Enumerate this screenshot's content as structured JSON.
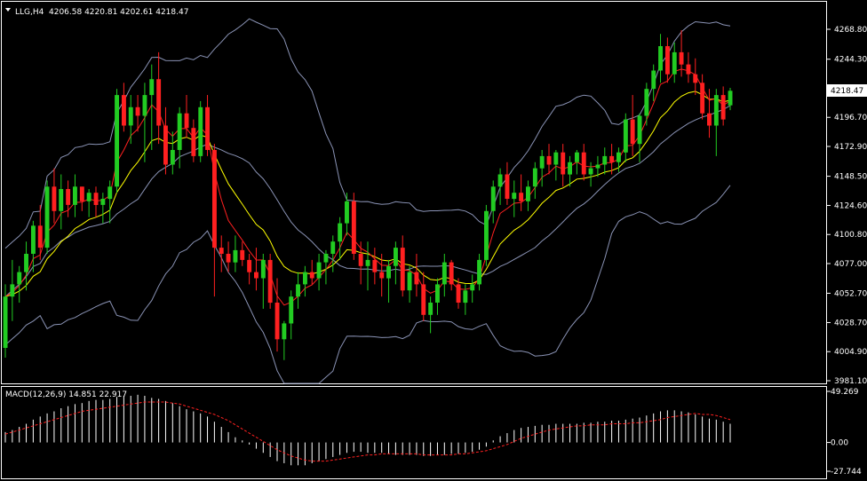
{
  "main": {
    "symbol_label": "LLG,H4",
    "ohlc_text": "4206.58 4220.81 4202.61 4218.47",
    "current_price_label": "4218.47",
    "price_axis": [
      "4268.80",
      "4244.30",
      "4220.30",
      "4196.70",
      "4172.90",
      "4148.50",
      "4124.60",
      "4100.80",
      "4077.00",
      "4052.70",
      "4028.70",
      "4004.90",
      "3981.10"
    ]
  },
  "macd": {
    "label": "MACD(12,26,9) 14.851 22.917",
    "axis": [
      "49.269",
      "0.00",
      "-27.744"
    ]
  },
  "colors": {
    "background": "#000000",
    "frame": "#ffffff",
    "bull_candle": "#22cc22",
    "bear_candle": "#ff2020",
    "wick": "#22cc22",
    "bollinger": "#8a93b5",
    "ma_fast": "#ff2020",
    "ma_slow": "#ffff00",
    "macd_hist": "#ffffff",
    "macd_signal": "#ff2020"
  },
  "chart_data": {
    "type": "candlestick",
    "price_range": [
      3981.1,
      4280.0
    ],
    "candles": [
      [
        4008,
        4060,
        4000,
        4050
      ],
      [
        4050,
        4080,
        4030,
        4060
      ],
      [
        4060,
        4075,
        4045,
        4070
      ],
      [
        4070,
        4095,
        4055,
        4085
      ],
      [
        4085,
        4112,
        4070,
        4108
      ],
      [
        4108,
        4125,
        4080,
        4090
      ],
      [
        4090,
        4145,
        4085,
        4140
      ],
      [
        4140,
        4155,
        4110,
        4120
      ],
      [
        4120,
        4150,
        4105,
        4138
      ],
      [
        4138,
        4145,
        4115,
        4125
      ],
      [
        4125,
        4150,
        4115,
        4140
      ],
      [
        4140,
        4140,
        4120,
        4128
      ],
      [
        4128,
        4138,
        4115,
        4135
      ],
      [
        4135,
        4140,
        4115,
        4125
      ],
      [
        4125,
        4135,
        4110,
        4130
      ],
      [
        4130,
        4145,
        4110,
        4140
      ],
      [
        4140,
        4220,
        4135,
        4215
      ],
      [
        4215,
        4225,
        4185,
        4190
      ],
      [
        4190,
        4215,
        4175,
        4205
      ],
      [
        4205,
        4215,
        4185,
        4198
      ],
      [
        4198,
        4225,
        4160,
        4215
      ],
      [
        4215,
        4240,
        4170,
        4228
      ],
      [
        4228,
        4250,
        4175,
        4190
      ],
      [
        4190,
        4205,
        4150,
        4158
      ],
      [
        4158,
        4185,
        4150,
        4170
      ],
      [
        4170,
        4205,
        4155,
        4200
      ],
      [
        4200,
        4215,
        4180,
        4188
      ],
      [
        4188,
        4195,
        4160,
        4165
      ],
      [
        4165,
        4210,
        4160,
        4205
      ],
      [
        4205,
        4215,
        4165,
        4170
      ],
      [
        4170,
        4175,
        4050,
        4090
      ],
      [
        4090,
        4100,
        4070,
        4085
      ],
      [
        4085,
        4095,
        4070,
        4078
      ],
      [
        4078,
        4100,
        4070,
        4088
      ],
      [
        4088,
        4095,
        4075,
        4080
      ],
      [
        4080,
        4085,
        4060,
        4070
      ],
      [
        4070,
        4090,
        4055,
        4065
      ],
      [
        4065,
        4085,
        4040,
        4080
      ],
      [
        4080,
        4085,
        4040,
        4045
      ],
      [
        4045,
        4065,
        4005,
        4015
      ],
      [
        4015,
        4030,
        3998,
        4028
      ],
      [
        4028,
        4055,
        4015,
        4050
      ],
      [
        4050,
        4070,
        4040,
        4060
      ],
      [
        4060,
        4075,
        4050,
        4070
      ],
      [
        4070,
        4080,
        4060,
        4065
      ],
      [
        4065,
        4085,
        4055,
        4078
      ],
      [
        4078,
        4088,
        4060,
        4085
      ],
      [
        4085,
        4100,
        4070,
        4095
      ],
      [
        4095,
        4115,
        4080,
        4110
      ],
      [
        4110,
        4135,
        4100,
        4128
      ],
      [
        4128,
        4135,
        4080,
        4085
      ],
      [
        4085,
        4095,
        4060,
        4075
      ],
      [
        4075,
        4095,
        4055,
        4080
      ],
      [
        4080,
        4090,
        4060,
        4070
      ],
      [
        4070,
        4085,
        4050,
        4065
      ],
      [
        4065,
        4080,
        4045,
        4075
      ],
      [
        4075,
        4095,
        4060,
        4090
      ],
      [
        4090,
        4100,
        4050,
        4055
      ],
      [
        4055,
        4075,
        4045,
        4070
      ],
      [
        4070,
        4085,
        4050,
        4060
      ],
      [
        4060,
        4070,
        4030,
        4035
      ],
      [
        4035,
        4050,
        4020,
        4045
      ],
      [
        4045,
        4065,
        4035,
        4060
      ],
      [
        4060,
        4085,
        4050,
        4078
      ],
      [
        4078,
        4080,
        4055,
        4060
      ],
      [
        4060,
        4065,
        4040,
        4045
      ],
      [
        4045,
        4060,
        4035,
        4055
      ],
      [
        4055,
        4068,
        4045,
        4060
      ],
      [
        4060,
        4085,
        4055,
        4080
      ],
      [
        4080,
        4125,
        4075,
        4120
      ],
      [
        4120,
        4145,
        4110,
        4140
      ],
      [
        4140,
        4155,
        4125,
        4150
      ],
      [
        4150,
        4160,
        4125,
        4130
      ],
      [
        4130,
        4145,
        4115,
        4135
      ],
      [
        4135,
        4150,
        4120,
        4128
      ],
      [
        4128,
        4145,
        4120,
        4140
      ],
      [
        4140,
        4160,
        4130,
        4155
      ],
      [
        4155,
        4170,
        4140,
        4165
      ],
      [
        4165,
        4175,
        4150,
        4158
      ],
      [
        4158,
        4170,
        4145,
        4168
      ],
      [
        4168,
        4175,
        4140,
        4150
      ],
      [
        4150,
        4165,
        4140,
        4160
      ],
      [
        4160,
        4170,
        4150,
        4168
      ],
      [
        4168,
        4175,
        4145,
        4150
      ],
      [
        4150,
        4160,
        4140,
        4155
      ],
      [
        4155,
        4165,
        4148,
        4158
      ],
      [
        4158,
        4172,
        4150,
        4165
      ],
      [
        4165,
        4175,
        4150,
        4160
      ],
      [
        4160,
        4172,
        4152,
        4168
      ],
      [
        4168,
        4200,
        4160,
        4195
      ],
      [
        4195,
        4215,
        4165,
        4175
      ],
      [
        4175,
        4200,
        4160,
        4198
      ],
      [
        4198,
        4225,
        4190,
        4220
      ],
      [
        4220,
        4240,
        4210,
        4235
      ],
      [
        4235,
        4265,
        4225,
        4255
      ],
      [
        4255,
        4262,
        4225,
        4232
      ],
      [
        4232,
        4258,
        4225,
        4250
      ],
      [
        4250,
        4268,
        4230,
        4240
      ],
      [
        4240,
        4250,
        4225,
        4232
      ],
      [
        4232,
        4245,
        4215,
        4225
      ],
      [
        4225,
        4232,
        4195,
        4200
      ],
      [
        4200,
        4220,
        4180,
        4190
      ],
      [
        4190,
        4220,
        4165,
        4215
      ],
      [
        4215,
        4222,
        4190,
        4195
      ],
      [
        4206.58,
        4220.81,
        4202.61,
        4218.47
      ]
    ],
    "macd_range": [
      -27.744,
      49.269
    ],
    "macd_histogram": [
      10,
      12,
      15,
      18,
      22,
      25,
      28,
      30,
      33,
      35,
      37,
      38,
      40,
      41,
      41,
      42,
      44,
      45,
      45,
      46,
      45,
      43,
      42,
      40,
      38,
      35,
      32,
      30,
      28,
      25,
      20,
      15,
      10,
      5,
      2,
      -2,
      -6,
      -10,
      -14,
      -18,
      -20,
      -22,
      -22,
      -22,
      -20,
      -18,
      -16,
      -14,
      -12,
      -10,
      -9,
      -9,
      -10,
      -10,
      -10,
      -11,
      -12,
      -12,
      -12,
      -12,
      -13,
      -13,
      -12,
      -12,
      -11,
      -11,
      -10,
      -9,
      -7,
      -4,
      2,
      6,
      9,
      12,
      14,
      15,
      16,
      17,
      17,
      18,
      18,
      18,
      18,
      19,
      19,
      20,
      20,
      21,
      21,
      22,
      23,
      24,
      26,
      28,
      30,
      31,
      31,
      30,
      29,
      27,
      25,
      23,
      22,
      20,
      18
    ],
    "macd_signal": [
      8,
      10,
      12,
      14,
      16,
      18,
      20,
      22,
      24,
      26,
      28,
      30,
      31,
      32,
      33,
      34,
      35,
      36,
      37,
      38,
      39,
      39,
      39,
      39,
      38,
      37,
      35,
      33,
      31,
      29,
      27,
      24,
      21,
      17,
      13,
      9,
      5,
      1,
      -3,
      -7,
      -10,
      -13,
      -15,
      -17,
      -18,
      -18,
      -18,
      -17,
      -16,
      -15,
      -14,
      -13,
      -12,
      -12,
      -11,
      -11,
      -11,
      -11,
      -11,
      -11,
      -12,
      -12,
      -12,
      -12,
      -12,
      -11,
      -11,
      -10,
      -9,
      -8,
      -6,
      -4,
      -2,
      1,
      4,
      6,
      8,
      10,
      12,
      13,
      14,
      15,
      16,
      16,
      17,
      17,
      17,
      18,
      18,
      18,
      19,
      19,
      20,
      21,
      22,
      24,
      25,
      26,
      27,
      28,
      27,
      27,
      26,
      24,
      22
    ]
  }
}
